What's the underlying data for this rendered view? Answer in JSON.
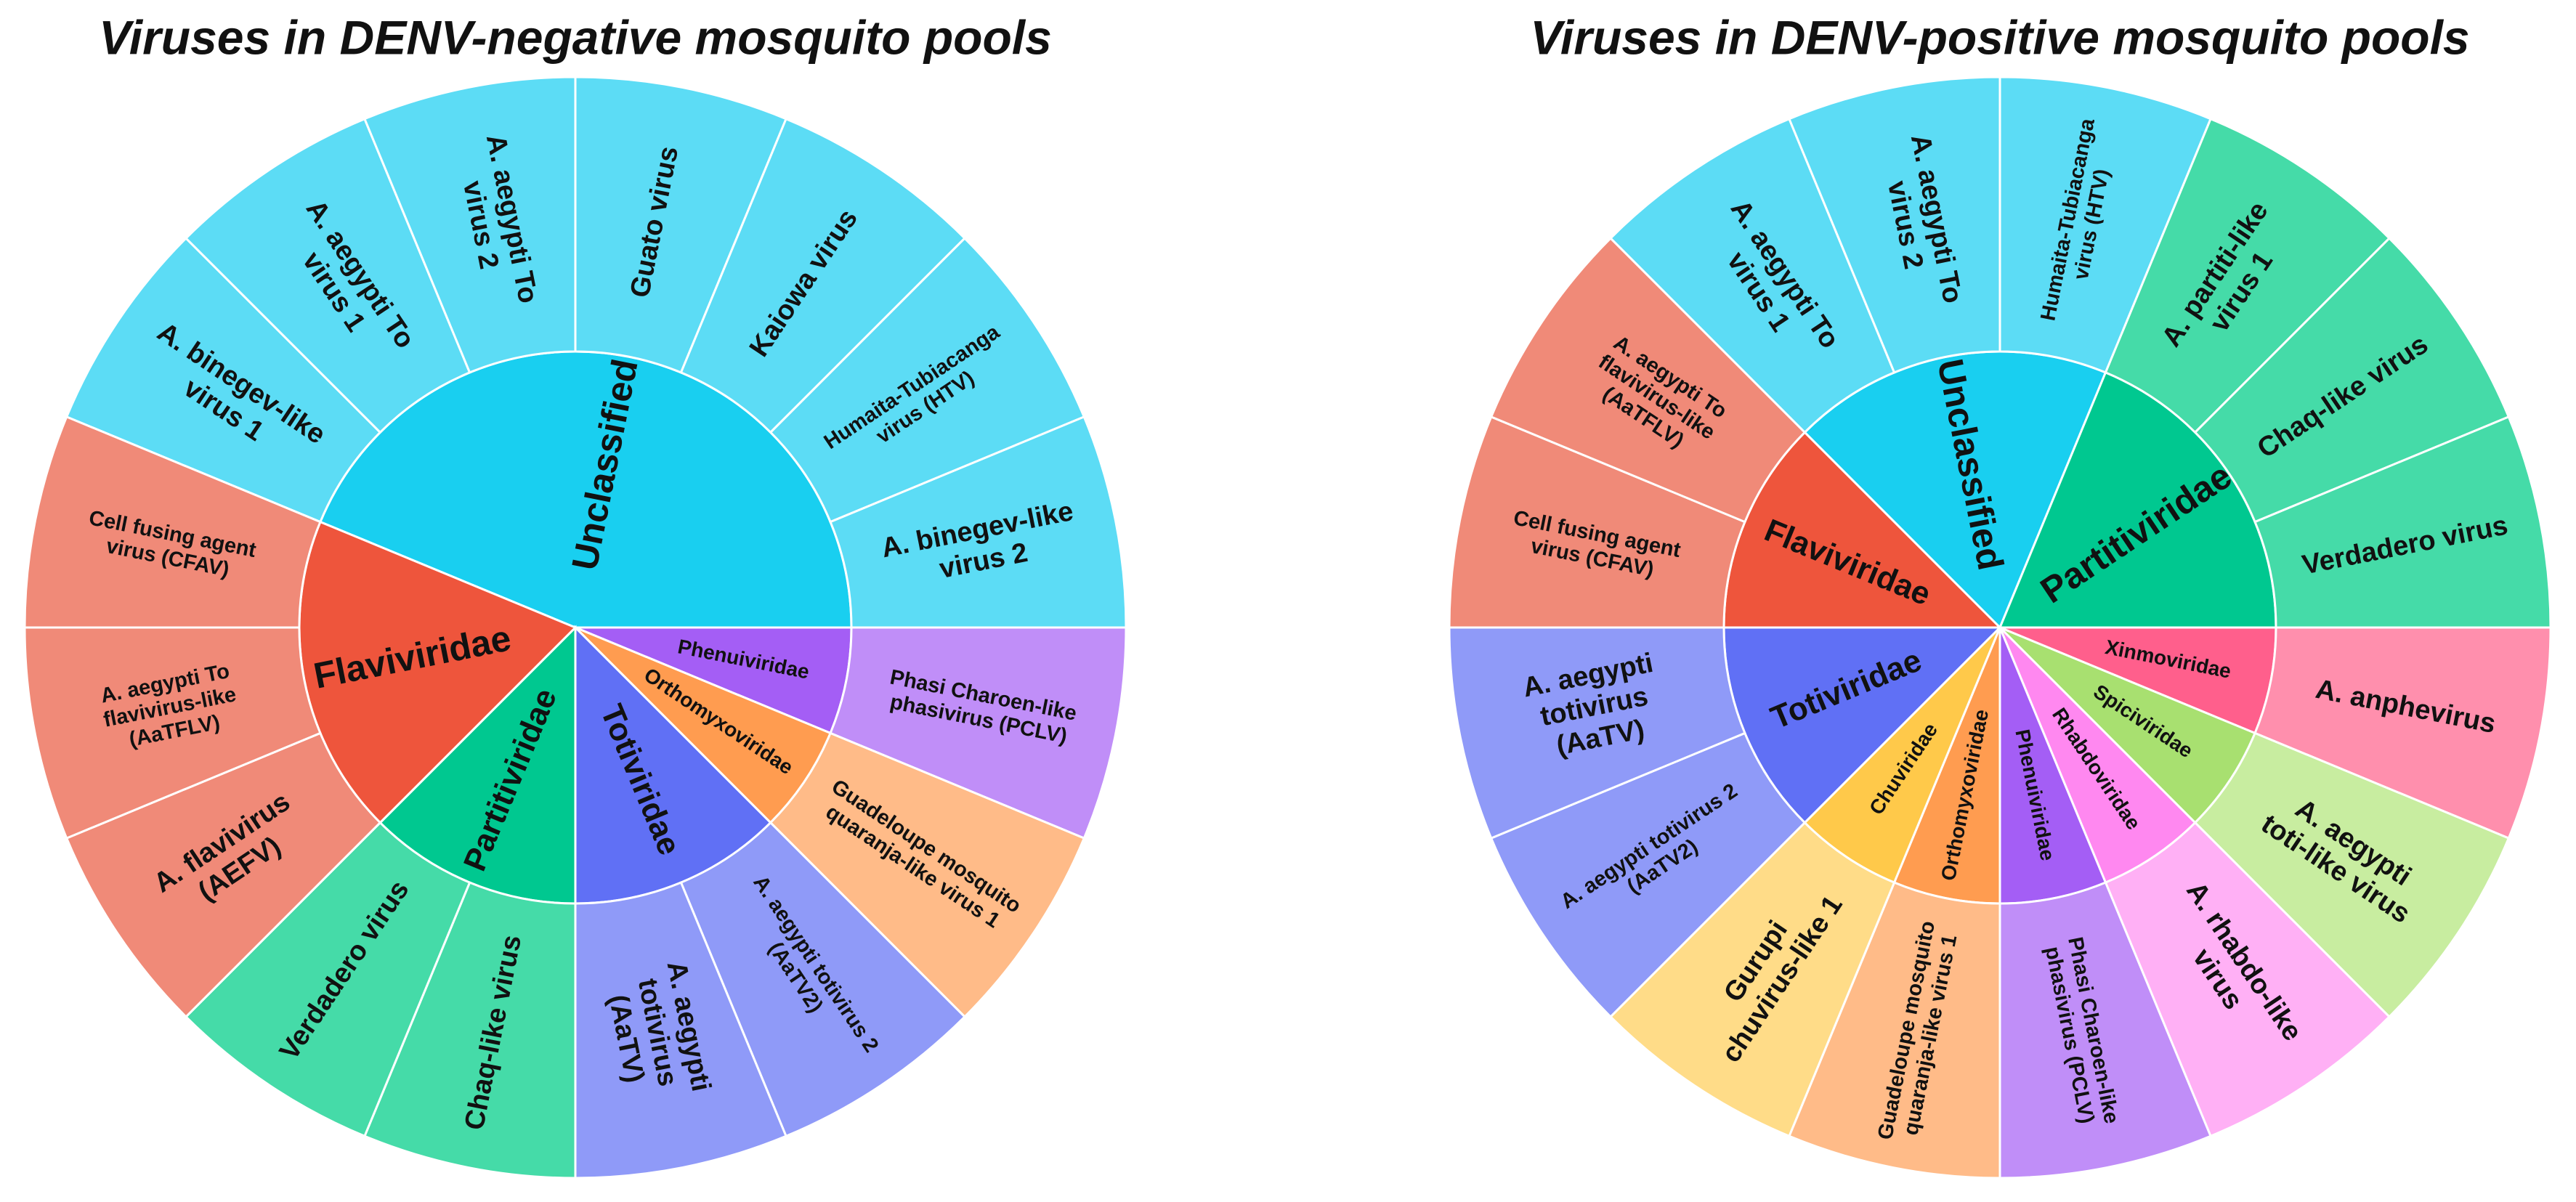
{
  "chart_data": [
    {
      "type": "sunburst",
      "title": "Viruses in DENV-negative mosquito pools",
      "groups": [
        {
          "name": "Unclassified",
          "color": "#19cff0",
          "leaf_color": "#5cdcf5",
          "children": [
            {
              "name": "A. binegev-like virus 1",
              "value": 1
            },
            {
              "name": "A. aegypti To virus 1",
              "value": 1
            },
            {
              "name": "A. aegypti To virus 2",
              "value": 1
            },
            {
              "name": "Guato virus",
              "value": 1
            },
            {
              "name": "Kaiowa virus",
              "value": 1
            },
            {
              "name": "Humaita-Tubiacanga virus (HTV)",
              "value": 1
            },
            {
              "name": "A. binegev-like virus 2",
              "value": 1
            }
          ]
        },
        {
          "name": "Phenuiviridae",
          "color": "#a45ef5",
          "leaf_color": "#c08ef8",
          "children": [
            {
              "name": "Phasi Charoen-like phasivirus (PCLV)",
              "value": 1
            }
          ]
        },
        {
          "name": "Orthomyxoviridae",
          "color": "#ff9c50",
          "leaf_color": "#ffbb88",
          "children": [
            {
              "name": "Guadeloupe mosquito quaranja-like virus 1",
              "value": 1
            }
          ]
        },
        {
          "name": "Totiviridae",
          "color": "#6070f5",
          "leaf_color": "#8f9af8",
          "children": [
            {
              "name": "A. aegypti totivirus 2 (AaTV2)",
              "value": 1
            },
            {
              "name": "A. aegypti totivirus (AaTV)",
              "value": 1
            }
          ]
        },
        {
          "name": "Partitiviridae",
          "color": "#00c890",
          "leaf_color": "#45dba8",
          "children": [
            {
              "name": "Chaq-like virus",
              "value": 1
            },
            {
              "name": "Verdadero virus",
              "value": 1
            }
          ]
        },
        {
          "name": "Flaviviridae",
          "color": "#ee553c",
          "leaf_color": "#f08a78",
          "children": [
            {
              "name": "A. flavivirus (AEFV)",
              "value": 1
            },
            {
              "name": "A. aegypti To flavivirus-like (AaTFLV)",
              "value": 1
            },
            {
              "name": "Cell fusing agent virus (CFAV)",
              "value": 1
            }
          ]
        }
      ]
    },
    {
      "type": "sunburst",
      "title": "Viruses in DENV-positive mosquito pools",
      "groups": [
        {
          "name": "Unclassified",
          "color": "#19cff0",
          "leaf_color": "#5cdcf5",
          "children": [
            {
              "name": "A. aegypti To virus 1",
              "value": 1
            },
            {
              "name": "A. aegypti To virus 2",
              "value": 1
            },
            {
              "name": "Humaita-Tubiacanga virus (HTV)",
              "value": 1
            }
          ]
        },
        {
          "name": "Partitiviridae",
          "color": "#00c890",
          "leaf_color": "#45dba8",
          "children": [
            {
              "name": "A. partiti-like virus 1",
              "value": 1
            },
            {
              "name": "Chaq-like virus",
              "value": 1
            },
            {
              "name": "Verdadero virus",
              "value": 1
            }
          ]
        },
        {
          "name": "Xinmoviridae",
          "color": "#ff5f8c",
          "leaf_color": "#ff8fad",
          "children": [
            {
              "name": "A. anphevirus",
              "value": 1
            }
          ]
        },
        {
          "name": "Spiciviridae",
          "color": "#a8e070",
          "leaf_color": "#c8eda0",
          "children": [
            {
              "name": "A. aegypti toti-like virus",
              "value": 1
            }
          ]
        },
        {
          "name": "Rhabdoviridae",
          "color": "#ff88f0",
          "leaf_color": "#ffb0f5",
          "children": [
            {
              "name": "A. rhabdo-like virus",
              "value": 1
            }
          ]
        },
        {
          "name": "Phenuiviridae",
          "color": "#a45ef5",
          "leaf_color": "#c08ef8",
          "children": [
            {
              "name": "Phasi Charoen-like phasivirus (PCLV)",
              "value": 1
            }
          ]
        },
        {
          "name": "Orthomyxoviridae",
          "color": "#ff9c50",
          "leaf_color": "#ffbb88",
          "children": [
            {
              "name": "Guadeloupe mosquito quaranja-like virus 1",
              "value": 1
            }
          ]
        },
        {
          "name": "Chuviridae",
          "color": "#ffc94a",
          "leaf_color": "#ffdc88",
          "children": [
            {
              "name": "Gurupi chuvirus-like 1",
              "value": 1
            }
          ]
        },
        {
          "name": "Totiviridae",
          "color": "#6070f5",
          "leaf_color": "#8f9af8",
          "children": [
            {
              "name": "A. aegypti totivirus 2 (AaTV2)",
              "value": 1
            },
            {
              "name": "A. aegypti totivirus (AaTV)",
              "value": 1
            }
          ]
        },
        {
          "name": "Flaviviridae",
          "color": "#ee553c",
          "leaf_color": "#f08a78",
          "children": [
            {
              "name": "Cell fusing agent virus (CFAV)",
              "value": 1
            },
            {
              "name": "A. aegypti To flavivirus-like (AaTFLV)",
              "value": 1
            }
          ]
        }
      ]
    }
  ]
}
